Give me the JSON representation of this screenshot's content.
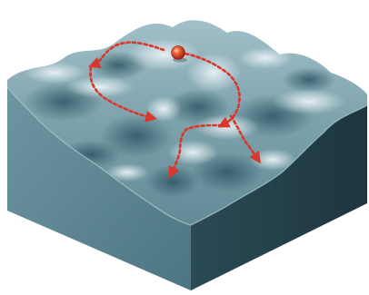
{
  "figure": {
    "description_shown": "",
    "colors": {
      "background": "#ffffff",
      "surface_light": "#c9dde3",
      "surface_mid": "#7fa3ad",
      "surface_dark": "#2f5966",
      "side_left": "#5e8794",
      "side_right": "#24404a",
      "path": "#d8372b",
      "ball": "#e04a2a"
    },
    "paths": [
      {
        "id": "descent-path-1",
        "shown": true
      },
      {
        "id": "descent-path-2",
        "shown": true
      },
      {
        "id": "descent-path-3",
        "shown": true
      },
      {
        "id": "descent-path-4",
        "shown": true
      },
      {
        "id": "descent-path-5",
        "shown": true
      }
    ],
    "markers": [
      {
        "id": "start-ball",
        "kind": "sphere"
      }
    ]
  }
}
